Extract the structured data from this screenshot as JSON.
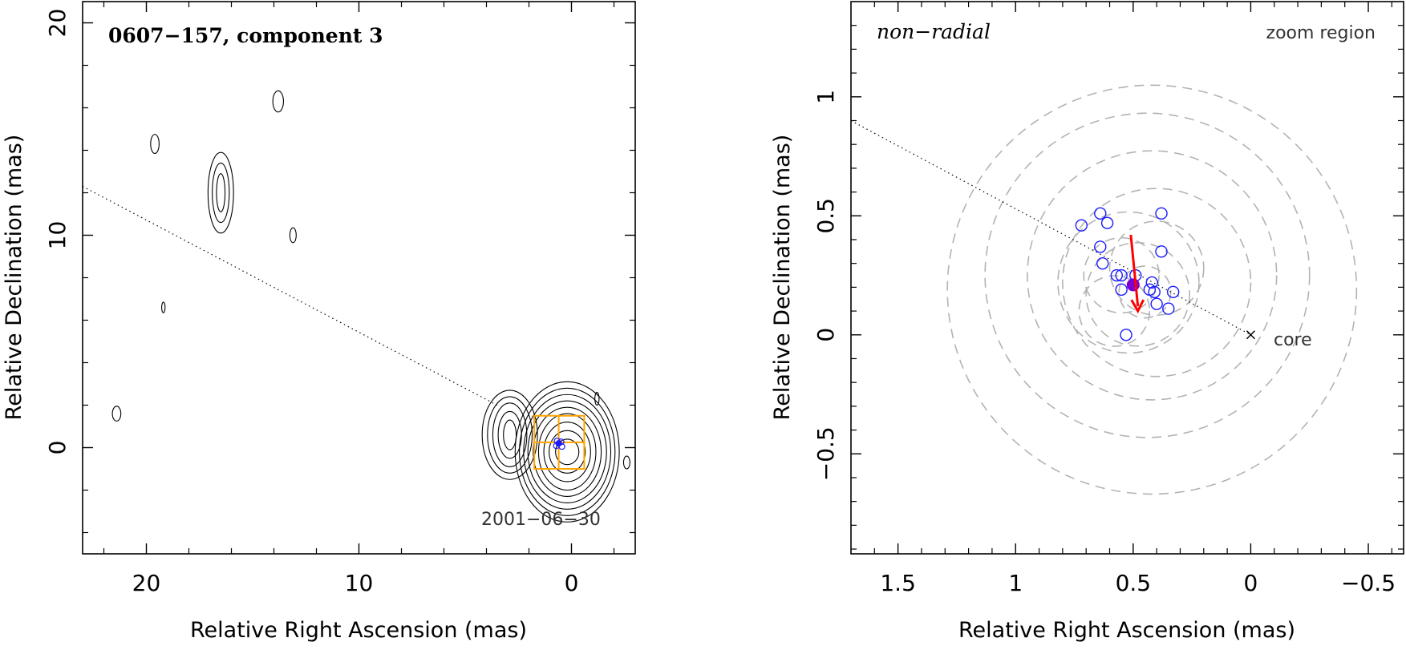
{
  "chart_data": [
    {
      "type": "contour",
      "title": "0607−157, component 3",
      "xlabel": "Relative Right Ascension (mas)",
      "ylabel": "Relative Declination (mas)",
      "xlim": [
        23,
        -3
      ],
      "ylim": [
        -5,
        21
      ],
      "xticks": [
        {
          "v": 20,
          "label": "20"
        },
        {
          "v": 10,
          "label": "10"
        },
        {
          "v": 0,
          "label": "0"
        }
      ],
      "yticks": [
        {
          "v": 0,
          "label": "0"
        },
        {
          "v": 10,
          "label": "10"
        },
        {
          "v": 20,
          "label": "20"
        }
      ],
      "xminor": [
        22,
        18,
        16,
        14,
        12,
        8,
        6,
        4,
        2,
        -2
      ],
      "yminor": [
        -4,
        -2,
        2,
        4,
        6,
        8,
        12,
        14,
        16,
        18
      ],
      "epoch_label": "2001−06−30",
      "direction_line": [
        [
          23,
          12.3
        ],
        [
          3.5,
          2.0
        ]
      ],
      "component_position": [
        0.6,
        0.2
      ],
      "zoom_boxes": [
        [
          1.75,
          -1.0,
          -0.6,
          1.5
        ],
        [
          1.75,
          -1.0,
          0.6,
          1.5
        ]
      ],
      "blobs": [
        {
          "cx": 0.2,
          "cy": -0.2,
          "rx_levels": [
            0.55,
            0.85,
            1.1,
            1.35,
            1.6,
            1.85,
            2.05,
            2.25,
            2.45
          ],
          "ry_levels": [
            0.6,
            1.0,
            1.4,
            1.8,
            2.1,
            2.4,
            2.7,
            3.0,
            3.3
          ]
        },
        {
          "cx": 2.9,
          "cy": 0.6,
          "rx_levels": [
            0.3,
            0.55,
            0.8,
            1.05,
            1.3
          ],
          "ry_levels": [
            0.7,
            1.1,
            1.5,
            1.8,
            2.1
          ]
        },
        {
          "cx": 16.5,
          "cy": 12.0,
          "rx_levels": [
            0.2,
            0.4,
            0.6
          ],
          "ry_levels": [
            0.9,
            1.4,
            1.9
          ]
        },
        {
          "cx": 13.8,
          "cy": 16.3,
          "rx_levels": [
            0.25
          ],
          "ry_levels": [
            0.5
          ]
        },
        {
          "cx": 19.6,
          "cy": 14.3,
          "rx_levels": [
            0.2
          ],
          "ry_levels": [
            0.45
          ]
        },
        {
          "cx": 13.1,
          "cy": 10.0,
          "rx_levels": [
            0.15
          ],
          "ry_levels": [
            0.35
          ]
        },
        {
          "cx": 21.4,
          "cy": 1.6,
          "rx_levels": [
            0.2
          ],
          "ry_levels": [
            0.35
          ]
        },
        {
          "cx": -1.2,
          "cy": 2.3,
          "rx_levels": [
            0.1
          ],
          "ry_levels": [
            0.3
          ]
        },
        {
          "cx": -2.6,
          "cy": -0.7,
          "rx_levels": [
            0.15
          ],
          "ry_levels": [
            0.3
          ]
        },
        {
          "cx": 19.2,
          "cy": 6.6,
          "rx_levels": [
            0.08
          ],
          "ry_levels": [
            0.25
          ]
        }
      ]
    },
    {
      "type": "scatter",
      "title": "non−radial",
      "subtitle": "zoom region",
      "xlabel": "Relative Right Ascension (mas)",
      "ylabel": "Relative Declination (mas)",
      "xlim": [
        1.7,
        -0.65
      ],
      "ylim": [
        -0.92,
        1.4
      ],
      "xticks": [
        {
          "v": 1.5,
          "label": "1.5"
        },
        {
          "v": 1,
          "label": "1"
        },
        {
          "v": 0.5,
          "label": "0.5"
        },
        {
          "v": 0,
          "label": "0"
        },
        {
          "v": -0.5,
          "label": "−0.5"
        }
      ],
      "yticks": [
        {
          "v": -0.5,
          "label": "−0.5"
        },
        {
          "v": 0,
          "label": "0"
        },
        {
          "v": 0.5,
          "label": "0.5"
        },
        {
          "v": 1,
          "label": "1"
        }
      ],
      "core_label": "core",
      "core_position": [
        0,
        0
      ],
      "direction_line": [
        [
          1.7,
          0.9
        ],
        [
          0.0,
          0.0
        ]
      ],
      "points": [
        [
          0.72,
          0.46
        ],
        [
          0.64,
          0.51
        ],
        [
          0.61,
          0.47
        ],
        [
          0.38,
          0.51
        ],
        [
          0.64,
          0.37
        ],
        [
          0.38,
          0.35
        ],
        [
          0.63,
          0.3
        ],
        [
          0.57,
          0.25
        ],
        [
          0.55,
          0.25
        ],
        [
          0.49,
          0.25
        ],
        [
          0.42,
          0.22
        ],
        [
          0.43,
          0.19
        ],
        [
          0.41,
          0.18
        ],
        [
          0.55,
          0.19
        ],
        [
          0.33,
          0.18
        ],
        [
          0.4,
          0.13
        ],
        [
          0.35,
          0.11
        ],
        [
          0.53,
          0.0
        ]
      ],
      "mean_position": [
        0.5,
        0.21
      ],
      "velocity_arrow": [
        [
          0.51,
          0.42
        ],
        [
          0.48,
          0.1
        ]
      ],
      "uncertainty_circles": [
        {
          "cx": 0.42,
          "cy": 0.19,
          "r": 0.87
        },
        {
          "cx": 0.44,
          "cy": 0.25,
          "r": 0.69
        },
        {
          "cx": 0.42,
          "cy": 0.25,
          "r": 0.53
        },
        {
          "cx": 0.4,
          "cy": 0.22,
          "r": 0.4
        },
        {
          "cx": 0.52,
          "cy": 0.22,
          "r": 0.3
        },
        {
          "cx": 0.48,
          "cy": 0.17,
          "r": 0.22
        },
        {
          "cx": 0.4,
          "cy": 0.28,
          "r": 0.2
        },
        {
          "cx": 0.55,
          "cy": 0.25,
          "r": 0.16
        },
        {
          "cx": 0.45,
          "cy": 0.18,
          "r": 0.11
        },
        {
          "cx": 0.58,
          "cy": 0.1,
          "r": 0.15
        }
      ],
      "colors": {
        "points": "#1a1aff",
        "mean": "#7b00d4",
        "arrow": "#ff0000",
        "circles": "#b3b3b3",
        "boxes": "#ffa500"
      }
    }
  ]
}
